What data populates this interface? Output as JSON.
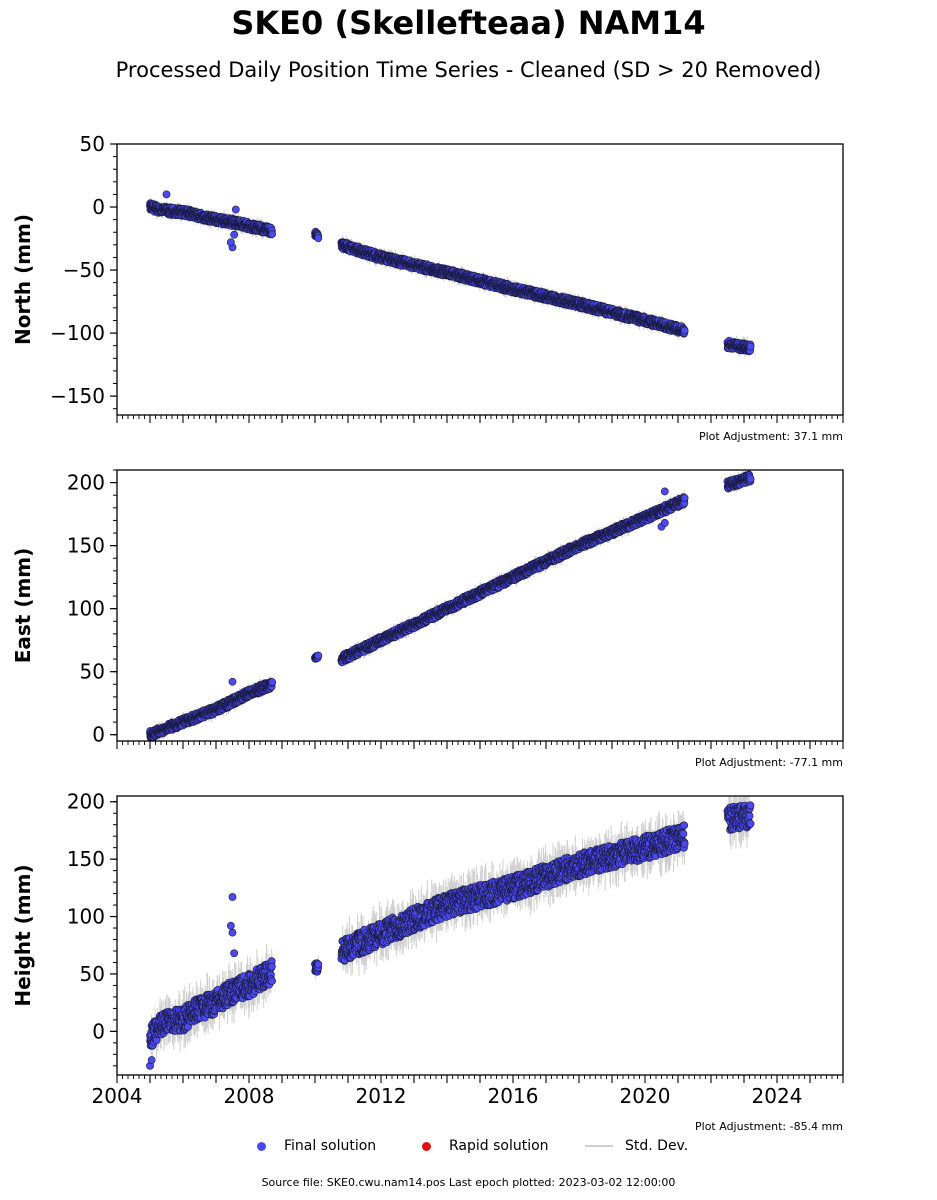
{
  "title": "SKE0 (Skellefteaa) NAM14",
  "subtitle": "Processed Daily Position Time Series - Cleaned (SD > 20 Removed)",
  "legend": {
    "final": "Final solution",
    "rapid": "Rapid solution",
    "std": "Std. Dev.",
    "final_color": "#4a4af0",
    "rapid_color": "#dd1111",
    "std_color": "#cfcfcf"
  },
  "source": "Source file: SKE0.cwu.nam14.pos  Last epoch plotted: 2023-03-02 12:00:00",
  "chart_data": [
    {
      "type": "scatter",
      "ylabel": "North (mm)",
      "adjustment": "Plot Adjustment: 37.1 mm",
      "xlim": [
        2004,
        2026
      ],
      "ylim": [
        -165,
        50
      ],
      "yticks": [
        50,
        0,
        -50,
        -100,
        -150
      ],
      "xticks": [
        2004,
        2008,
        2012,
        2016,
        2020,
        2024
      ],
      "x_tick_labels_shown": false,
      "series": [
        {
          "segments": [
            {
              "x": [
                2005.0,
                2005.5,
                2006.0,
                2006.5,
                2007.0,
                2007.5,
                2008.0,
                2008.5,
                2008.7
              ],
              "y": [
                0,
                -3,
                -4,
                -7,
                -10,
                -12,
                -15,
                -18,
                -19
              ],
              "noise": 3
            },
            {
              "x": [
                2010.0,
                2010.1
              ],
              "y": [
                -21,
                -23
              ],
              "noise": 2
            },
            {
              "x": [
                2010.8,
                2012.0,
                2014.0,
                2016.0,
                2018.0,
                2020.0,
                2021.2
              ],
              "y": [
                -30,
                -40,
                -52,
                -65,
                -77,
                -90,
                -98
              ],
              "noise": 3
            },
            {
              "x": [
                2022.5,
                2023.2
              ],
              "y": [
                -109,
                -112
              ],
              "noise": 3
            }
          ],
          "outliers": [
            [
              2007.5,
              -32
            ],
            [
              2007.45,
              -28
            ],
            [
              2007.55,
              -22
            ],
            [
              2007.6,
              -2
            ],
            [
              2005.5,
              10
            ]
          ]
        }
      ]
    },
    {
      "type": "scatter",
      "ylabel": "East (mm)",
      "adjustment": "Plot Adjustment: -77.1 mm",
      "xlim": [
        2004,
        2026
      ],
      "ylim": [
        -5,
        210
      ],
      "yticks": [
        200,
        150,
        100,
        50,
        0
      ],
      "xticks": [
        2004,
        2008,
        2012,
        2016,
        2020,
        2024
      ],
      "x_tick_labels_shown": false,
      "series": [
        {
          "segments": [
            {
              "x": [
                2005.0,
                2006.0,
                2007.0,
                2008.0,
                2008.7
              ],
              "y": [
                0,
                10,
                20,
                33,
                40
              ],
              "noise": 3
            },
            {
              "x": [
                2010.0,
                2010.1
              ],
              "y": [
                61,
                62
              ],
              "noise": 1
            },
            {
              "x": [
                2010.8,
                2012.0,
                2014.0,
                2016.0,
                2018.0,
                2020.0,
                2021.2
              ],
              "y": [
                60,
                75,
                100,
                125,
                150,
                172,
                186
              ],
              "noise": 3
            },
            {
              "x": [
                2022.5,
                2023.2
              ],
              "y": [
                198,
                204
              ],
              "noise": 3
            }
          ],
          "outliers": [
            [
              2007.5,
              42
            ],
            [
              2020.6,
              193
            ],
            [
              2020.5,
              165
            ],
            [
              2020.6,
              168
            ]
          ]
        }
      ]
    },
    {
      "type": "scatter",
      "ylabel": "Height (mm)",
      "adjustment": "Plot Adjustment: -85.4 mm",
      "xlim": [
        2004,
        2026
      ],
      "ylim": [
        -38,
        205
      ],
      "yticks": [
        200,
        150,
        100,
        50,
        0
      ],
      "xticks": [
        2004,
        2008,
        2012,
        2016,
        2020,
        2024
      ],
      "x_tick_labels_shown": true,
      "series": [
        {
          "segments": [
            {
              "x": [
                2005.0,
                2005.5,
                2006.0,
                2006.5,
                2007.0,
                2007.5,
                2008.0,
                2008.7
              ],
              "y": [
                -5,
                10,
                10,
                20,
                25,
                35,
                40,
                52
              ],
              "noise": 10
            },
            {
              "x": [
                2010.0,
                2010.1
              ],
              "y": [
                55,
                56
              ],
              "noise": 4
            },
            {
              "x": [
                2010.8,
                2012.0,
                2014.0,
                2016.0,
                2018.0,
                2020.0,
                2021.2
              ],
              "y": [
                70,
                85,
                110,
                125,
                145,
                160,
                170
              ],
              "noise": 10
            },
            {
              "x": [
                2022.5,
                2023.2
              ],
              "y": [
                185,
                188
              ],
              "noise": 10
            }
          ],
          "outliers": [
            [
              2007.5,
              117
            ],
            [
              2007.45,
              92
            ],
            [
              2007.5,
              86
            ],
            [
              2007.55,
              68
            ],
            [
              2005.0,
              -30
            ],
            [
              2005.05,
              -25
            ]
          ]
        }
      ]
    }
  ]
}
